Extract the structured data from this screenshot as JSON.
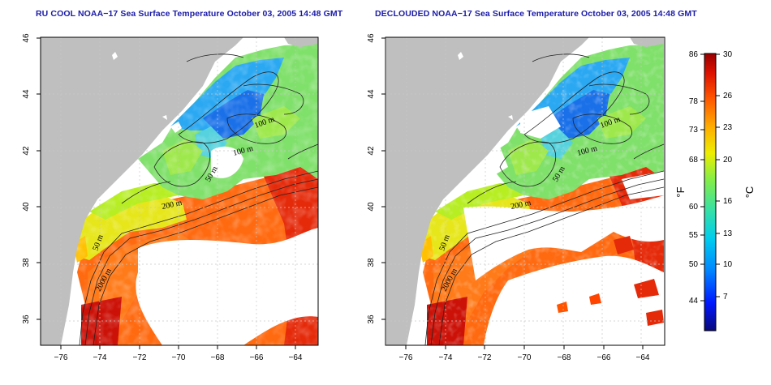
{
  "panels": [
    {
      "title": "RU COOL NOAA−17 Sea Surface Temperature October 03, 2005 14:48 GMT",
      "contour_labels": [
        "100 m",
        "100 m",
        "50 m",
        "200 m",
        "50 m",
        "2000 m"
      ]
    },
    {
      "title": "DECLOUDED NOAA−17 Sea Surface Temperature October 03, 2005 14:48 GMT",
      "contour_labels": [
        "100 m",
        "100 m",
        "50 m",
        "200 m",
        "50 m",
        "2000 m"
      ]
    }
  ],
  "axes": {
    "lon_ticks": [
      "−76",
      "−74",
      "−72",
      "−70",
      "−68",
      "−66",
      "−64"
    ],
    "lat_ticks": [
      "46",
      "44",
      "42",
      "40",
      "38",
      "36"
    ]
  },
  "colorbar": {
    "fahrenheit_ticks": [
      "86",
      "78",
      "73",
      "68",
      "60",
      "55",
      "50",
      "44"
    ],
    "celsius_ticks": [
      "30",
      "26",
      "23",
      "20",
      "16",
      "13",
      "10",
      "7"
    ],
    "fahrenheit_unit": "°F",
    "celsius_unit": "°C"
  },
  "colors": {
    "land": "#bfbfbf",
    "title": "#1a1aa8",
    "scale": [
      "#08087a",
      "#0018ff",
      "#0088ff",
      "#00ccee",
      "#33e0aa",
      "#88ee44",
      "#eeee00",
      "#ffaa00",
      "#ff5500",
      "#dd1100",
      "#990000"
    ]
  }
}
